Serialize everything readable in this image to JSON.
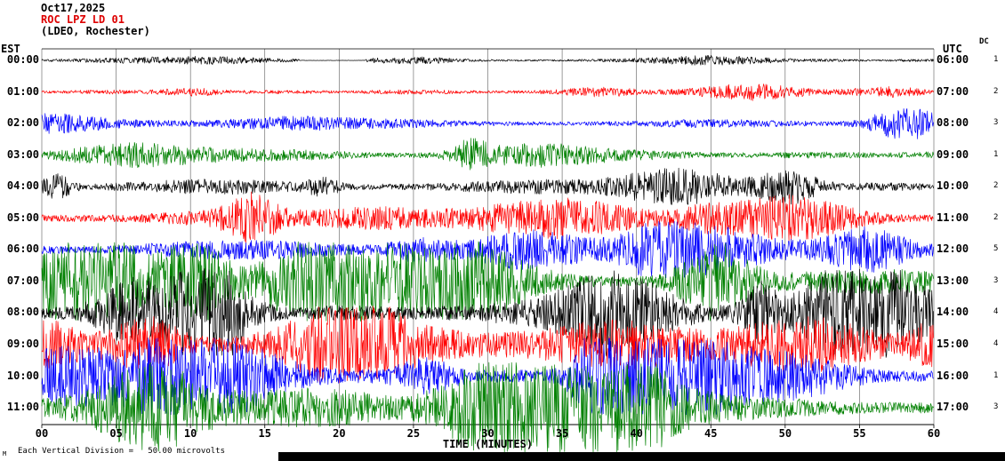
{
  "header": {
    "date": "Oct17,2025",
    "station": "ROC LPZ LD 01",
    "location": "(LDEO, Rochester)",
    "station_color": "#dd0000"
  },
  "axes": {
    "left_label": "EST",
    "right_label": "UTC",
    "dc_label": "DC",
    "x_label": "TIME (MINUTES)",
    "x_ticks": [
      "00",
      "05",
      "10",
      "15",
      "20",
      "25",
      "30",
      "35",
      "40",
      "45",
      "50",
      "55",
      "60"
    ]
  },
  "footer": {
    "marker": "M",
    "scale_note": "Each Vertical Division =   50.00 microvolts"
  },
  "chart_data": {
    "type": "line",
    "subtype": "helicorder-seismogram",
    "title": "ROC LPZ LD 01 (LDEO, Rochester) Oct17,2025",
    "x_label": "TIME (MINUTES)",
    "x_range_minutes": [
      0,
      60
    ],
    "minutes_per_gridline": 5,
    "vertical_division_microvolts": 50.0,
    "timezone_left": "EST",
    "timezone_right": "UTC",
    "colors_cycle": [
      "#000000",
      "#ff0000",
      "#0000ff",
      "#008000"
    ],
    "rows": [
      {
        "est": "00:00",
        "utc": "06:00",
        "color": "#000000",
        "dc": "1",
        "rel_amp": 0.15,
        "quiet_minutes": [
          17.3,
          21.8
        ]
      },
      {
        "est": "01:00",
        "utc": "07:00",
        "color": "#ff0000",
        "dc": "2",
        "rel_amp": 0.22
      },
      {
        "est": "02:00",
        "utc": "08:00",
        "color": "#0000ff",
        "dc": "3",
        "rel_amp": 0.34
      },
      {
        "est": "03:00",
        "utc": "09:00",
        "color": "#008000",
        "dc": "1",
        "rel_amp": 0.42
      },
      {
        "est": "04:00",
        "utc": "10:00",
        "color": "#000000",
        "dc": "2",
        "rel_amp": 0.55
      },
      {
        "est": "05:00",
        "utc": "11:00",
        "color": "#ff0000",
        "dc": "2",
        "rel_amp": 0.6
      },
      {
        "est": "06:00",
        "utc": "12:00",
        "color": "#0000ff",
        "dc": "5",
        "rel_amp": 0.65
      },
      {
        "est": "07:00",
        "utc": "13:00",
        "color": "#008000",
        "dc": "3",
        "rel_amp": 0.88
      },
      {
        "est": "08:00",
        "utc": "14:00",
        "color": "#000000",
        "dc": "4",
        "rel_amp": 1.0
      },
      {
        "est": "09:00",
        "utc": "15:00",
        "color": "#ff0000",
        "dc": "4",
        "rel_amp": 0.85
      },
      {
        "est": "10:00",
        "utc": "16:00",
        "color": "#0000ff",
        "dc": "1",
        "rel_amp": 0.85
      },
      {
        "est": "11:00",
        "utc": "17:00",
        "color": "#008000",
        "dc": "3",
        "rel_amp": 1.0
      }
    ]
  }
}
